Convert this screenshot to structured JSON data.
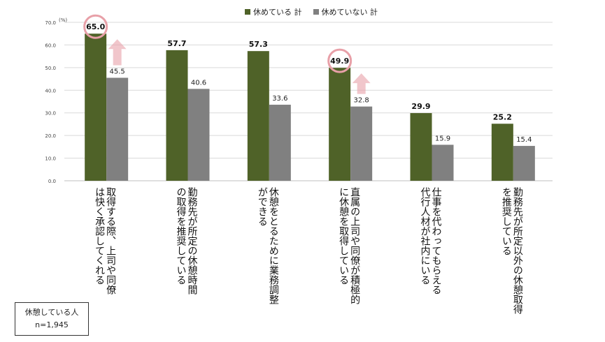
{
  "legend": {
    "items": [
      {
        "label": "休めている 計",
        "color": "#4f6228"
      },
      {
        "label": "休めていない 計",
        "color": "#808080"
      }
    ]
  },
  "note": {
    "line1": "休憩している人",
    "line2": "n=1,945"
  },
  "chart_data": {
    "type": "bar",
    "ylim": [
      0,
      70
    ],
    "yticks": [
      "0.0",
      "10.0",
      "20.0",
      "30.0",
      "40.0",
      "50.0",
      "60.0",
      "70.0"
    ],
    "yunit": "(%)",
    "grid": true,
    "legend_position": "top-center",
    "categories": [
      "取得する際、上司や同僚は快く承認してくれる",
      "勤務先が所定の休憩時間の取得を推奨している",
      "休憩をとるために業務調整ができる",
      "直属の上司や同僚が積極的に休憩を取得している",
      "仕事を代わってもらえる代行人材が社内にいる",
      "勤務先が所定以外の休憩取得を推奨している"
    ],
    "category_lines": [
      [
        "取得する際、上司や同僚",
        "は快く承認してくれる"
      ],
      [
        "勤務先が所定の休憩時間",
        "の取得を推奨している"
      ],
      [
        "休憩をとるために業務調整",
        "ができる"
      ],
      [
        "直属の上司や同僚が積極的",
        "に休憩を取得している"
      ],
      [
        "仕事を代わってもらえる",
        "代行人材が社内にいる"
      ],
      [
        "勤務先が所定以外の休憩取得",
        "を推奨している"
      ]
    ],
    "series": [
      {
        "name": "休めている 計",
        "color": "#4f6228",
        "values": [
          65.0,
          57.7,
          57.3,
          49.9,
          29.9,
          25.2
        ],
        "labels": [
          "65.0",
          "57.7",
          "57.3",
          "49.9",
          "29.9",
          "25.2"
        ]
      },
      {
        "name": "休めていない 計",
        "color": "#808080",
        "values": [
          45.5,
          40.6,
          33.6,
          32.8,
          15.9,
          15.4
        ],
        "labels": [
          "45.5",
          "40.6",
          "33.6",
          "32.8",
          "15.9",
          "15.4"
        ]
      }
    ],
    "highlights": [
      0,
      3
    ],
    "highlight_color": "#e8a0a8"
  }
}
